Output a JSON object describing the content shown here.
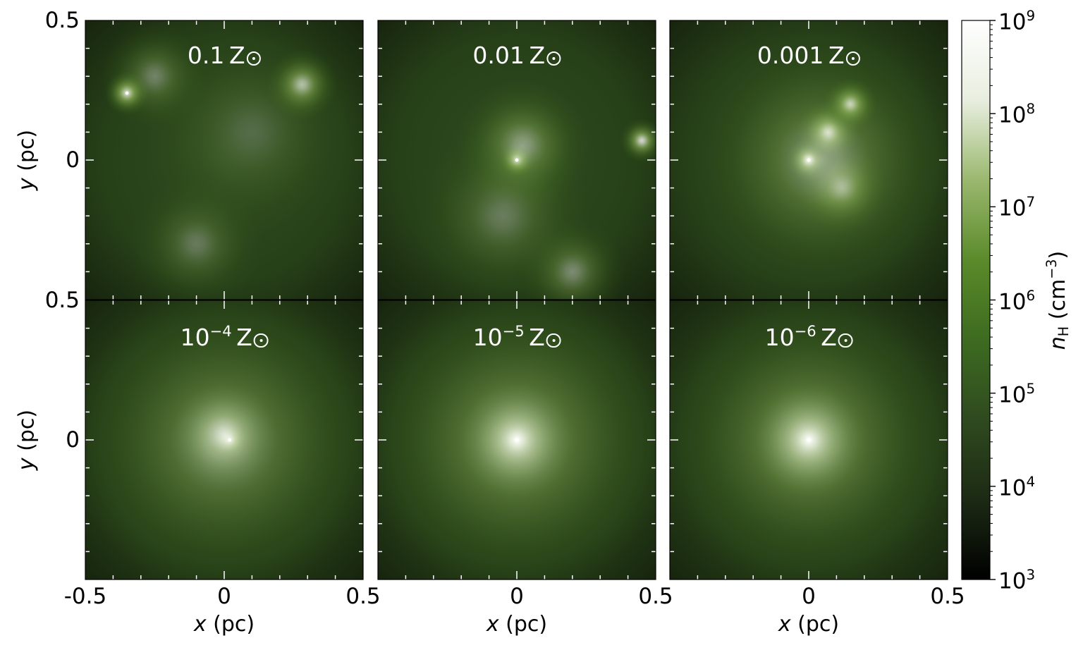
{
  "chart_data": {
    "type": "heatmap",
    "description_type": "projected gas density maps, 2x3 panel grid",
    "panels": [
      {
        "label_value": "0.1",
        "label_exp": "",
        "label_unit": "Z",
        "row": 0,
        "col": 0,
        "blobs": [
          {
            "x": -0.35,
            "y": 0.24,
            "s": 0.05,
            "a": 0.9
          },
          {
            "x": 0.28,
            "y": 0.27,
            "s": 0.08,
            "a": 0.7
          },
          {
            "x": -0.25,
            "y": 0.3,
            "s": 0.12,
            "a": 0.35
          },
          {
            "x": -0.1,
            "y": -0.3,
            "s": 0.15,
            "a": 0.3
          },
          {
            "x": 0.1,
            "y": 0.1,
            "s": 0.25,
            "a": 0.2
          }
        ]
      },
      {
        "label_value": "0.01",
        "label_exp": "",
        "label_unit": "Z",
        "row": 0,
        "col": 1,
        "blobs": [
          {
            "x": 0.0,
            "y": 0.0,
            "s": 0.04,
            "a": 1.0
          },
          {
            "x": 0.45,
            "y": 0.07,
            "s": 0.05,
            "a": 0.8
          },
          {
            "x": 0.02,
            "y": 0.05,
            "s": 0.15,
            "a": 0.5
          },
          {
            "x": 0.2,
            "y": -0.4,
            "s": 0.12,
            "a": 0.4
          },
          {
            "x": -0.05,
            "y": -0.2,
            "s": 0.2,
            "a": 0.3
          }
        ]
      },
      {
        "label_value": "0.001",
        "label_exp": "",
        "label_unit": "Z",
        "row": 0,
        "col": 2,
        "blobs": [
          {
            "x": 0.0,
            "y": 0.0,
            "s": 0.05,
            "a": 1.2
          },
          {
            "x": 0.07,
            "y": 0.1,
            "s": 0.07,
            "a": 0.9
          },
          {
            "x": 0.15,
            "y": 0.2,
            "s": 0.06,
            "a": 0.9
          },
          {
            "x": 0.12,
            "y": -0.1,
            "s": 0.1,
            "a": 0.6
          },
          {
            "x": 0.05,
            "y": 0.0,
            "s": 0.3,
            "a": 0.45
          }
        ]
      },
      {
        "label_value": "10",
        "label_exp": "-4",
        "label_unit": "Z",
        "row": 1,
        "col": 0,
        "blobs": [
          {
            "x": 0.02,
            "y": 0.0,
            "s": 0.04,
            "a": 1.3
          },
          {
            "x": 0.0,
            "y": 0.02,
            "s": 0.12,
            "a": 0.7
          },
          {
            "x": 0.0,
            "y": 0.0,
            "s": 0.35,
            "a": 0.45
          }
        ]
      },
      {
        "label_value": "10",
        "label_exp": "-5",
        "label_unit": "Z",
        "row": 1,
        "col": 1,
        "blobs": [
          {
            "x": 0.0,
            "y": 0.0,
            "s": 0.04,
            "a": 1.3
          },
          {
            "x": 0.0,
            "y": 0.0,
            "s": 0.13,
            "a": 0.8
          },
          {
            "x": 0.0,
            "y": 0.0,
            "s": 0.35,
            "a": 0.5
          }
        ]
      },
      {
        "label_value": "10",
        "label_exp": "-6",
        "label_unit": "Z",
        "row": 1,
        "col": 2,
        "blobs": [
          {
            "x": 0.0,
            "y": 0.0,
            "s": 0.04,
            "a": 1.3
          },
          {
            "x": 0.0,
            "y": 0.0,
            "s": 0.13,
            "a": 0.8
          },
          {
            "x": 0.0,
            "y": 0.0,
            "s": 0.33,
            "a": 0.5
          }
        ]
      }
    ],
    "x_ticks_row_bottom": [
      [
        {
          "v": -0.5,
          "t": "-0.5"
        },
        {
          "v": 0,
          "t": "0"
        },
        {
          "v": 0.5,
          "t": "0.5"
        }
      ],
      [
        {
          "v": 0,
          "t": "0"
        },
        {
          "v": 0.5,
          "t": "0.5"
        }
      ],
      [
        {
          "v": 0,
          "t": "0"
        },
        {
          "v": 0.5,
          "t": "0.5"
        }
      ]
    ],
    "y_ticks_top": [
      {
        "v": 0.5,
        "t": "0.5"
      },
      {
        "v": 0,
        "t": "0"
      }
    ],
    "y_ticks_bottom": [
      {
        "v": 0.5,
        "t": "0.5"
      },
      {
        "v": 0,
        "t": "0"
      }
    ],
    "xlim": [
      -0.5,
      0.5
    ],
    "ylim": [
      -0.5,
      0.5
    ],
    "xlabel_var": "x",
    "xlabel_unit": "(pc)",
    "ylabel_var": "y",
    "ylabel_unit": "(pc)",
    "colorbar": {
      "var": "n",
      "sub": "H",
      "unit_open": "(cm",
      "unit_exp": "−3",
      "unit_close": ")",
      "ticks": [
        {
          "v": 9,
          "base": "10",
          "exp": "9"
        },
        {
          "v": 8,
          "base": "10",
          "exp": "8"
        },
        {
          "v": 7,
          "base": "10",
          "exp": "7"
        },
        {
          "v": 6,
          "base": "10",
          "exp": "6"
        },
        {
          "v": 5,
          "base": "10",
          "exp": "5"
        },
        {
          "v": 4,
          "base": "10",
          "exp": "4"
        },
        {
          "v": 3,
          "base": "10",
          "exp": "3"
        }
      ],
      "range": [
        3,
        9
      ],
      "scale": "log",
      "colors": [
        "#000000",
        "#1c2a14",
        "#2f4a1f",
        "#3d6b20",
        "#5a8a2a",
        "#9ab86e",
        "#e8eedf",
        "#ffffff"
      ]
    },
    "grid": false
  }
}
